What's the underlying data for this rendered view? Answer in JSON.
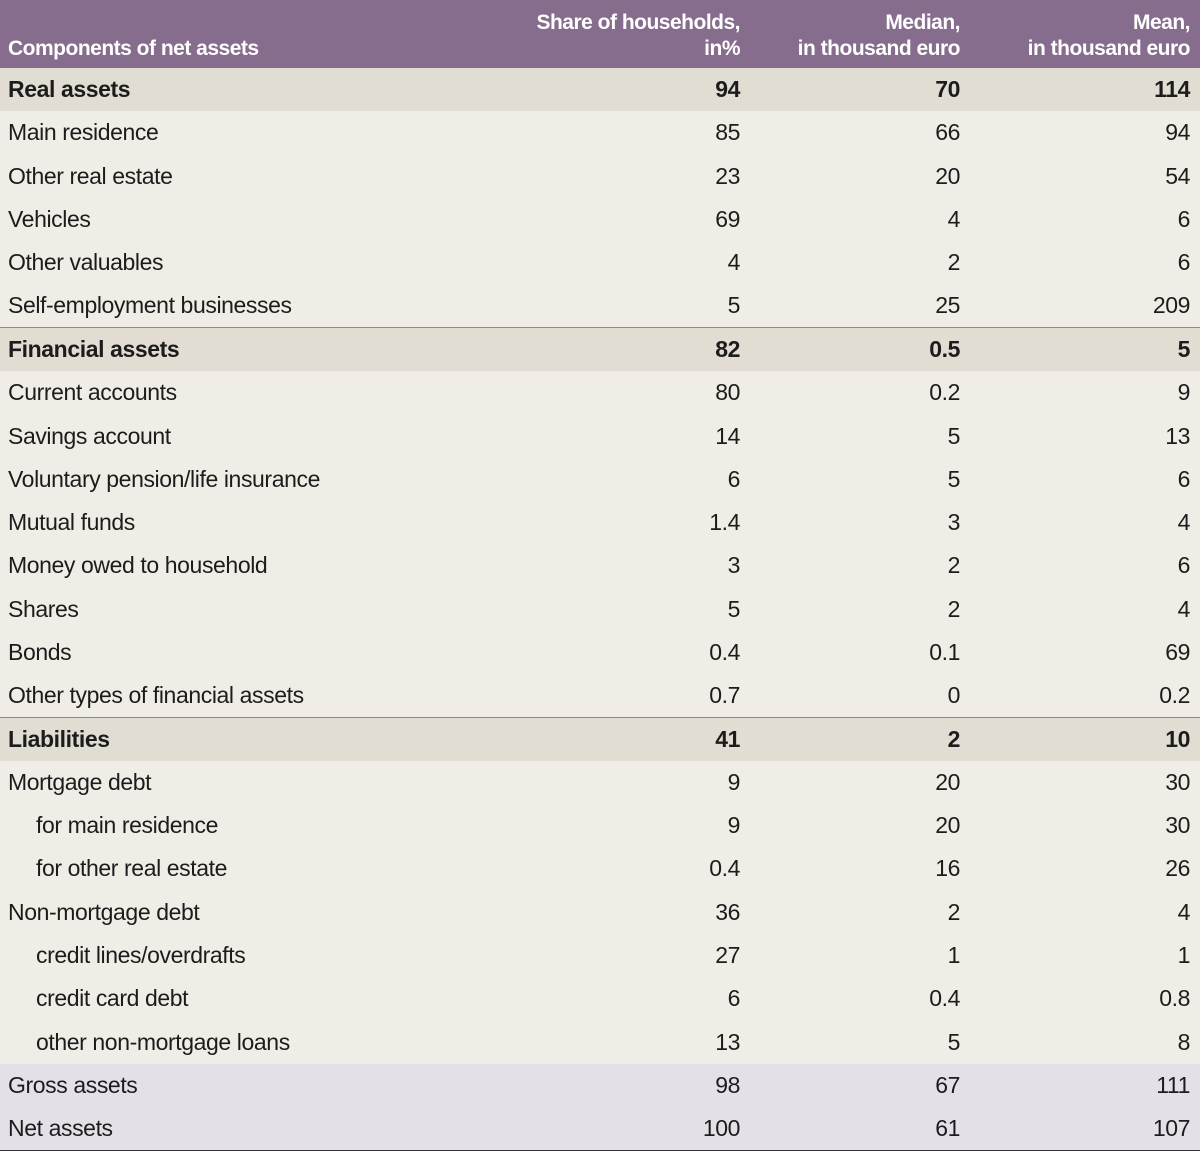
{
  "table": {
    "headers": [
      "Components of net assets",
      "Share of households,\nin%",
      "Median,\nin thousand euro",
      "Mean,\nin thousand euro"
    ],
    "rows": [
      {
        "label": "Real assets",
        "share": "94",
        "median": "70",
        "mean": "114",
        "kind": "section"
      },
      {
        "label": "Main residence",
        "share": "85",
        "median": "66",
        "mean": "94",
        "kind": "item"
      },
      {
        "label": "Other real estate",
        "share": "23",
        "median": "20",
        "mean": "54",
        "kind": "item"
      },
      {
        "label": "Vehicles",
        "share": "69",
        "median": "4",
        "mean": "6",
        "kind": "item"
      },
      {
        "label": "Other valuables",
        "share": "4",
        "median": "2",
        "mean": "6",
        "kind": "item"
      },
      {
        "label": "Self-employment businesses",
        "share": "5",
        "median": "25",
        "mean": "209",
        "kind": "item"
      },
      {
        "label": "Financial assets",
        "share": "82",
        "median": "0.5",
        "mean": "5",
        "kind": "section"
      },
      {
        "label": "Current accounts",
        "share": "80",
        "median": "0.2",
        "mean": "9",
        "kind": "item"
      },
      {
        "label": "Savings account",
        "share": "14",
        "median": "5",
        "mean": "13",
        "kind": "item"
      },
      {
        "label": "Voluntary pension/life insurance",
        "share": "6",
        "median": "5",
        "mean": "6",
        "kind": "item"
      },
      {
        "label": "Mutual funds",
        "share": "1.4",
        "median": "3",
        "mean": "4",
        "kind": "item"
      },
      {
        "label": "Money owed to household",
        "share": "3",
        "median": "2",
        "mean": "6",
        "kind": "item"
      },
      {
        "label": "Shares",
        "share": "5",
        "median": "2",
        "mean": "4",
        "kind": "item"
      },
      {
        "label": "Bonds",
        "share": "0.4",
        "median": "0.1",
        "mean": "69",
        "kind": "item"
      },
      {
        "label": "Other types of financial assets",
        "share": "0.7",
        "median": "0",
        "mean": "0.2",
        "kind": "item"
      },
      {
        "label": "Liabilities",
        "share": "41",
        "median": "2",
        "mean": "10",
        "kind": "section"
      },
      {
        "label": "Mortgage debt",
        "share": "9",
        "median": "20",
        "mean": "30",
        "kind": "item"
      },
      {
        "label": "for main residence",
        "share": "9",
        "median": "20",
        "mean": "30",
        "kind": "sub"
      },
      {
        "label": "for other real estate",
        "share": "0.4",
        "median": "16",
        "mean": "26",
        "kind": "sub"
      },
      {
        "label": "Non-mortgage debt",
        "share": "36",
        "median": "2",
        "mean": "4",
        "kind": "item"
      },
      {
        "label": "credit lines/overdrafts",
        "share": "27",
        "median": "1",
        "mean": "1",
        "kind": "sub"
      },
      {
        "label": "credit card debt",
        "share": "6",
        "median": "0.4",
        "mean": "0.8",
        "kind": "sub"
      },
      {
        "label": "other non-mortgage loans",
        "share": "13",
        "median": "5",
        "mean": "8",
        "kind": "sub"
      },
      {
        "label": "Gross assets",
        "share": "98",
        "median": "67",
        "mean": "111",
        "kind": "total"
      },
      {
        "label": "Net assets",
        "share": "100",
        "median": "61",
        "mean": "107",
        "kind": "total"
      }
    ]
  },
  "colors": {
    "header_bg": "#866d8e",
    "section_bg": "#e1ddd3",
    "item_bg": "#f0ede7",
    "total_bg": "#e5e0e8"
  }
}
